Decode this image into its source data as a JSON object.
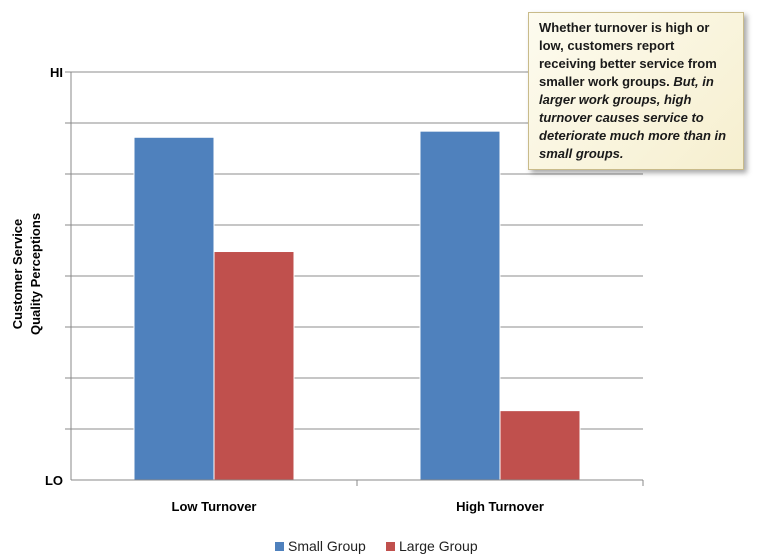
{
  "chart_data": {
    "type": "bar",
    "categories": [
      "Low Turnover",
      "High Turnover"
    ],
    "series": [
      {
        "name": "Small Group",
        "color": "#4f81bd",
        "values": [
          0.84,
          0.855
        ]
      },
      {
        "name": "Large Group",
        "color": "#c0504d",
        "values": [
          0.56,
          0.17
        ]
      }
    ],
    "ylabel": [
      "Customer Service",
      "Quality Perceptions"
    ],
    "ytick_labels": {
      "top": "HI",
      "bottom": "LO"
    },
    "ylim": [
      0,
      1
    ],
    "gridlines": 8,
    "grid": true,
    "legend_position": "bottom-center"
  },
  "callout": {
    "plain": "Whether  turnover is high or low, customers report receiving better service from smaller work groups.",
    "italic": "But, in larger work groups, high turnover causes service to deteriorate much more than in small groups."
  }
}
